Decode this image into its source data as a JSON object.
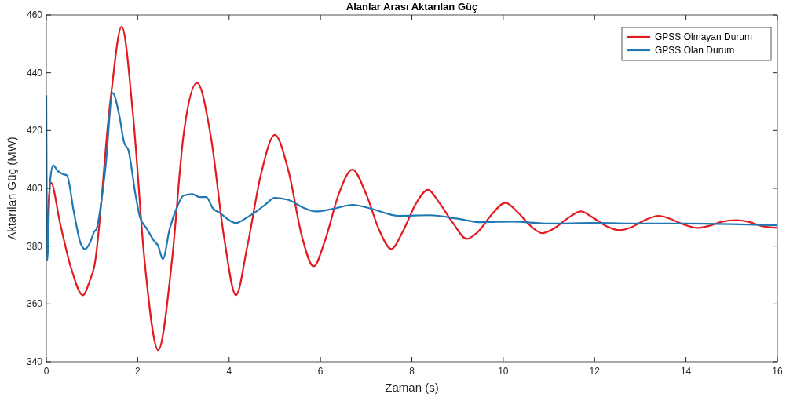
{
  "chart_data": {
    "type": "line",
    "title": "Alanlar Arası Aktarılan Güç",
    "xlabel": "Zaman (s)",
    "ylabel": "Aktarılan Güç (MW)",
    "xlim": [
      0,
      16
    ],
    "xticks": [
      0,
      2,
      4,
      6,
      8,
      10,
      12,
      14,
      16
    ],
    "ylim": [
      340,
      460
    ],
    "yticks": [
      340,
      360,
      380,
      400,
      420,
      440,
      460
    ],
    "grid": false,
    "legend": "top right",
    "line_style": "solid",
    "marker": "none",
    "series": [
      {
        "name": "GPSS Olmayan Durum",
        "color": "#e3191f",
        "x": [
          0,
          0.1,
          0.3,
          0.55,
          0.8,
          0.95,
          1.05,
          1.4,
          1.65,
          1.9,
          2.15,
          2.45,
          2.75,
          3.0,
          3.3,
          3.6,
          3.9,
          4.15,
          4.4,
          4.7,
          5.0,
          5.3,
          5.6,
          5.85,
          6.1,
          6.4,
          6.7,
          7.0,
          7.3,
          7.55,
          7.8,
          8.1,
          8.35,
          8.6,
          8.9,
          9.2,
          9.45,
          9.75,
          10.05,
          10.3,
          10.6,
          10.85,
          11.1,
          11.4,
          11.7,
          11.95,
          12.25,
          12.55,
          12.8,
          13.1,
          13.4,
          13.65,
          13.95,
          14.25,
          14.5,
          14.8,
          15.1,
          15.35,
          15.65,
          16
        ],
        "values": [
          380,
          402,
          388,
          372,
          363,
          368,
          373,
          430,
          456,
          425,
          375,
          344,
          375,
          418,
          436.5,
          418,
          382,
          363,
          380,
          405,
          418.5,
          406,
          383,
          373,
          382,
          398,
          406.5,
          398,
          385,
          379,
          385,
          395,
          399.5,
          395,
          388,
          382.5,
          385,
          391,
          395,
          392,
          387,
          384.5,
          386,
          389.5,
          392,
          390,
          387,
          385.5,
          386.5,
          389,
          390.5,
          389.5,
          387.5,
          386.3,
          387,
          388.5,
          389,
          388.5,
          387,
          386.3
        ]
      },
      {
        "name": "GPSS Olan Durum",
        "color": "#1f77b4",
        "x": [
          0,
          0.02,
          0.08,
          0.15,
          0.25,
          0.35,
          0.45,
          0.6,
          0.75,
          0.85,
          0.95,
          1.05,
          1.1,
          1.2,
          1.3,
          1.45,
          1.6,
          1.7,
          1.8,
          1.95,
          2.05,
          2.2,
          2.35,
          2.45,
          2.55,
          2.7,
          2.85,
          3.0,
          3.2,
          3.35,
          3.5,
          3.65,
          3.8,
          4.0,
          4.15,
          4.4,
          4.6,
          4.8,
          5.0,
          5.3,
          5.6,
          5.9,
          6.3,
          6.7,
          7.1,
          7.7,
          8.4,
          9.0,
          9.5,
          10.2,
          11.0,
          12.0,
          13.0,
          14.0,
          15.0,
          16
        ],
        "values": [
          432,
          375,
          402,
          408,
          406,
          405,
          404.5,
          392,
          381,
          379,
          381,
          385,
          386,
          395,
          408,
          433,
          425,
          416,
          413,
          398,
          390,
          386,
          382,
          380,
          375.5,
          386,
          393,
          397.5,
          398,
          397,
          397,
          393,
          391.5,
          389,
          388,
          390,
          392,
          394.5,
          396.7,
          396,
          393.5,
          392,
          393,
          394.3,
          393,
          390.5,
          390.7,
          389.5,
          388.3,
          388.5,
          387.8,
          388,
          387.8,
          387.8,
          387.6,
          387.2
        ]
      }
    ]
  }
}
